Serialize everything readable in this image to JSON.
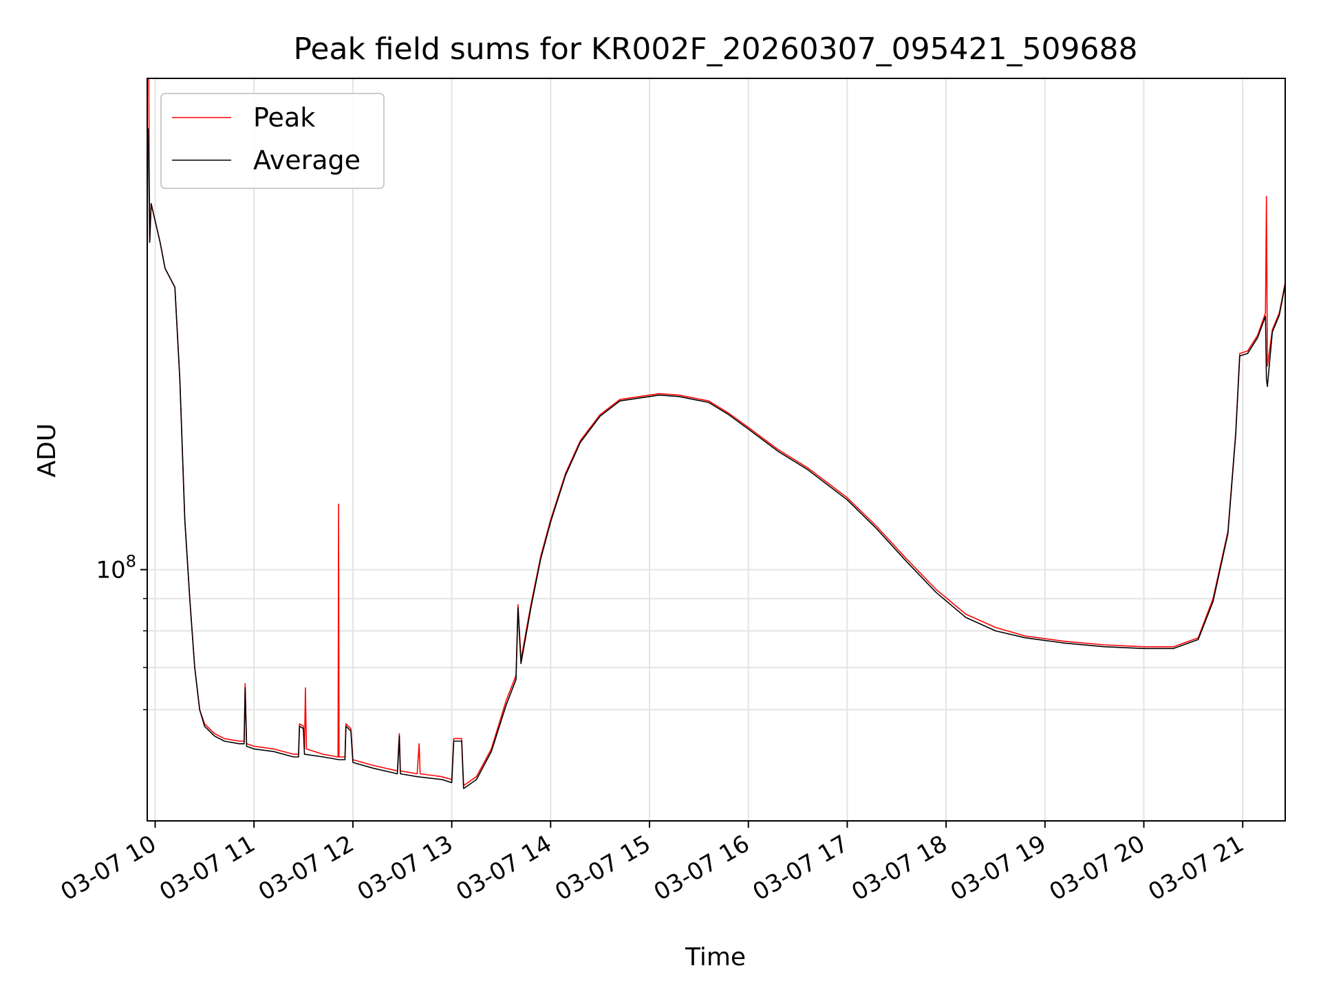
{
  "chart_data": {
    "type": "line",
    "title": "Peak field sums for KR002F_20260307_095421_509688",
    "xlabel": "Time",
    "ylabel": "ADU",
    "x_unit": "hours (local, 2026-03-07)",
    "xlim": [
      9.92,
      21.43
    ],
    "yscale": "log",
    "ylim": [
      40000000,
      600000000
    ],
    "grid": true,
    "legend_position": "top-left",
    "x_ticks": [
      {
        "value": 10,
        "label": "03-07 10"
      },
      {
        "value": 11,
        "label": "03-07 11"
      },
      {
        "value": 12,
        "label": "03-07 12"
      },
      {
        "value": 13,
        "label": "03-07 13"
      },
      {
        "value": 14,
        "label": "03-07 14"
      },
      {
        "value": 15,
        "label": "03-07 15"
      },
      {
        "value": 16,
        "label": "03-07 16"
      },
      {
        "value": 17,
        "label": "03-07 17"
      },
      {
        "value": 18,
        "label": "03-07 18"
      },
      {
        "value": 19,
        "label": "03-07 19"
      },
      {
        "value": 20,
        "label": "03-07 20"
      },
      {
        "value": 21,
        "label": "03-07 21"
      }
    ],
    "y_major_ticks": [
      {
        "value": 100000000,
        "base": "10",
        "exponent": "8"
      }
    ],
    "y_minor_ticks": [
      60000000,
      70000000,
      80000000,
      90000000
    ],
    "series": [
      {
        "name": "Peak",
        "color": "#ff0000",
        "points": [
          [
            9.935,
            600000000
          ],
          [
            9.945,
            330000000
          ],
          [
            9.96,
            380000000
          ],
          [
            10.05,
            330000000
          ],
          [
            10.1,
            300000000
          ],
          [
            10.2,
            280000000
          ],
          [
            10.25,
            200000000
          ],
          [
            10.3,
            120000000
          ],
          [
            10.35,
            90000000
          ],
          [
            10.4,
            70000000
          ],
          [
            10.45,
            60000000
          ],
          [
            10.5,
            57000000
          ],
          [
            10.6,
            55000000
          ],
          [
            10.7,
            54000000
          ],
          [
            10.85,
            53500000
          ],
          [
            10.9,
            53500000
          ],
          [
            10.91,
            66000000
          ],
          [
            10.925,
            53000000
          ],
          [
            11.0,
            52500000
          ],
          [
            11.2,
            52000000
          ],
          [
            11.4,
            51000000
          ],
          [
            11.45,
            51000000
          ],
          [
            11.46,
            57000000
          ],
          [
            11.5,
            56500000
          ],
          [
            11.51,
            52000000
          ],
          [
            11.52,
            65000000
          ],
          [
            11.53,
            52000000
          ],
          [
            11.7,
            51000000
          ],
          [
            11.85,
            50500000
          ],
          [
            11.855,
            127000000
          ],
          [
            11.86,
            50500000
          ],
          [
            11.92,
            50500000
          ],
          [
            11.93,
            57000000
          ],
          [
            11.98,
            56000000
          ],
          [
            12.0,
            50000000
          ],
          [
            12.2,
            49000000
          ],
          [
            12.45,
            48000000
          ],
          [
            12.47,
            55000000
          ],
          [
            12.48,
            48000000
          ],
          [
            12.65,
            47500000
          ],
          [
            12.67,
            53000000
          ],
          [
            12.68,
            47500000
          ],
          [
            12.9,
            47000000
          ],
          [
            13.0,
            46500000
          ],
          [
            13.02,
            54000000
          ],
          [
            13.1,
            54000000
          ],
          [
            13.12,
            45500000
          ],
          [
            13.25,
            47000000
          ],
          [
            13.4,
            52000000
          ],
          [
            13.55,
            62000000
          ],
          [
            13.65,
            68000000
          ],
          [
            13.67,
            88000000
          ],
          [
            13.7,
            72000000
          ],
          [
            13.8,
            88000000
          ],
          [
            13.9,
            105000000
          ],
          [
            14.0,
            120000000
          ],
          [
            14.15,
            142000000
          ],
          [
            14.3,
            160000000
          ],
          [
            14.5,
            176000000
          ],
          [
            14.7,
            186000000
          ],
          [
            14.9,
            188000000
          ],
          [
            15.1,
            190000000
          ],
          [
            15.3,
            189000000
          ],
          [
            15.6,
            185000000
          ],
          [
            15.8,
            177000000
          ],
          [
            16.0,
            168000000
          ],
          [
            16.3,
            155000000
          ],
          [
            16.6,
            145000000
          ],
          [
            17.0,
            130000000
          ],
          [
            17.3,
            117000000
          ],
          [
            17.6,
            104000000
          ],
          [
            17.9,
            93000000
          ],
          [
            18.2,
            85000000
          ],
          [
            18.5,
            81000000
          ],
          [
            18.8,
            78500000
          ],
          [
            19.2,
            77000000
          ],
          [
            19.6,
            76000000
          ],
          [
            20.0,
            75500000
          ],
          [
            20.3,
            75500000
          ],
          [
            20.55,
            78000000
          ],
          [
            20.7,
            90000000
          ],
          [
            20.85,
            115000000
          ],
          [
            20.93,
            165000000
          ],
          [
            20.97,
            220000000
          ],
          [
            21.05,
            222000000
          ],
          [
            21.15,
            235000000
          ],
          [
            21.23,
            255000000
          ],
          [
            21.24,
            390000000
          ],
          [
            21.25,
            210000000
          ],
          [
            21.3,
            240000000
          ],
          [
            21.37,
            255000000
          ],
          [
            21.43,
            285000000
          ]
        ]
      },
      {
        "name": "Average",
        "color": "#000000",
        "points": [
          [
            9.93,
            500000000
          ],
          [
            9.945,
            330000000
          ],
          [
            9.96,
            380000000
          ],
          [
            10.05,
            330000000
          ],
          [
            10.1,
            300000000
          ],
          [
            10.2,
            280000000
          ],
          [
            10.25,
            200000000
          ],
          [
            10.3,
            120000000
          ],
          [
            10.35,
            90000000
          ],
          [
            10.4,
            70000000
          ],
          [
            10.45,
            60000000
          ],
          [
            10.5,
            56500000
          ],
          [
            10.6,
            54500000
          ],
          [
            10.7,
            53500000
          ],
          [
            10.85,
            53000000
          ],
          [
            10.9,
            53000000
          ],
          [
            10.91,
            65000000
          ],
          [
            10.925,
            52500000
          ],
          [
            11.0,
            52000000
          ],
          [
            11.2,
            51500000
          ],
          [
            11.4,
            50500000
          ],
          [
            11.45,
            50500000
          ],
          [
            11.46,
            56500000
          ],
          [
            11.5,
            56000000
          ],
          [
            11.51,
            51000000
          ],
          [
            11.7,
            50500000
          ],
          [
            11.86,
            50000000
          ],
          [
            11.92,
            50000000
          ],
          [
            11.93,
            56500000
          ],
          [
            11.98,
            55500000
          ],
          [
            12.0,
            49500000
          ],
          [
            12.2,
            48500000
          ],
          [
            12.45,
            47500000
          ],
          [
            12.47,
            54500000
          ],
          [
            12.48,
            47500000
          ],
          [
            12.65,
            47000000
          ],
          [
            12.9,
            46500000
          ],
          [
            13.0,
            46000000
          ],
          [
            13.02,
            53500000
          ],
          [
            13.1,
            53500000
          ],
          [
            13.12,
            45000000
          ],
          [
            13.25,
            46500000
          ],
          [
            13.4,
            51500000
          ],
          [
            13.55,
            61000000
          ],
          [
            13.65,
            67000000
          ],
          [
            13.67,
            87000000
          ],
          [
            13.7,
            71000000
          ],
          [
            13.8,
            87000000
          ],
          [
            13.9,
            104000000
          ],
          [
            14.0,
            119000000
          ],
          [
            14.15,
            141000000
          ],
          [
            14.3,
            159000000
          ],
          [
            14.5,
            175000000
          ],
          [
            14.7,
            185000000
          ],
          [
            14.9,
            187000000
          ],
          [
            15.1,
            189000000
          ],
          [
            15.3,
            188000000
          ],
          [
            15.6,
            184000000
          ],
          [
            15.8,
            176000000
          ],
          [
            16.0,
            167000000
          ],
          [
            16.3,
            154000000
          ],
          [
            16.6,
            144000000
          ],
          [
            17.0,
            129000000
          ],
          [
            17.3,
            116000000
          ],
          [
            17.6,
            103000000
          ],
          [
            17.9,
            92000000
          ],
          [
            18.2,
            84000000
          ],
          [
            18.5,
            80000000
          ],
          [
            18.8,
            78000000
          ],
          [
            19.2,
            76500000
          ],
          [
            19.6,
            75500000
          ],
          [
            20.0,
            75000000
          ],
          [
            20.3,
            75000000
          ],
          [
            20.55,
            77500000
          ],
          [
            20.7,
            89000000
          ],
          [
            20.85,
            114000000
          ],
          [
            20.93,
            164000000
          ],
          [
            20.97,
            218000000
          ],
          [
            21.05,
            220000000
          ],
          [
            21.15,
            233000000
          ],
          [
            21.23,
            252000000
          ],
          [
            21.24,
            200000000
          ],
          [
            21.25,
            195000000
          ],
          [
            21.3,
            238000000
          ],
          [
            21.37,
            253000000
          ],
          [
            21.43,
            283000000
          ]
        ]
      }
    ]
  }
}
